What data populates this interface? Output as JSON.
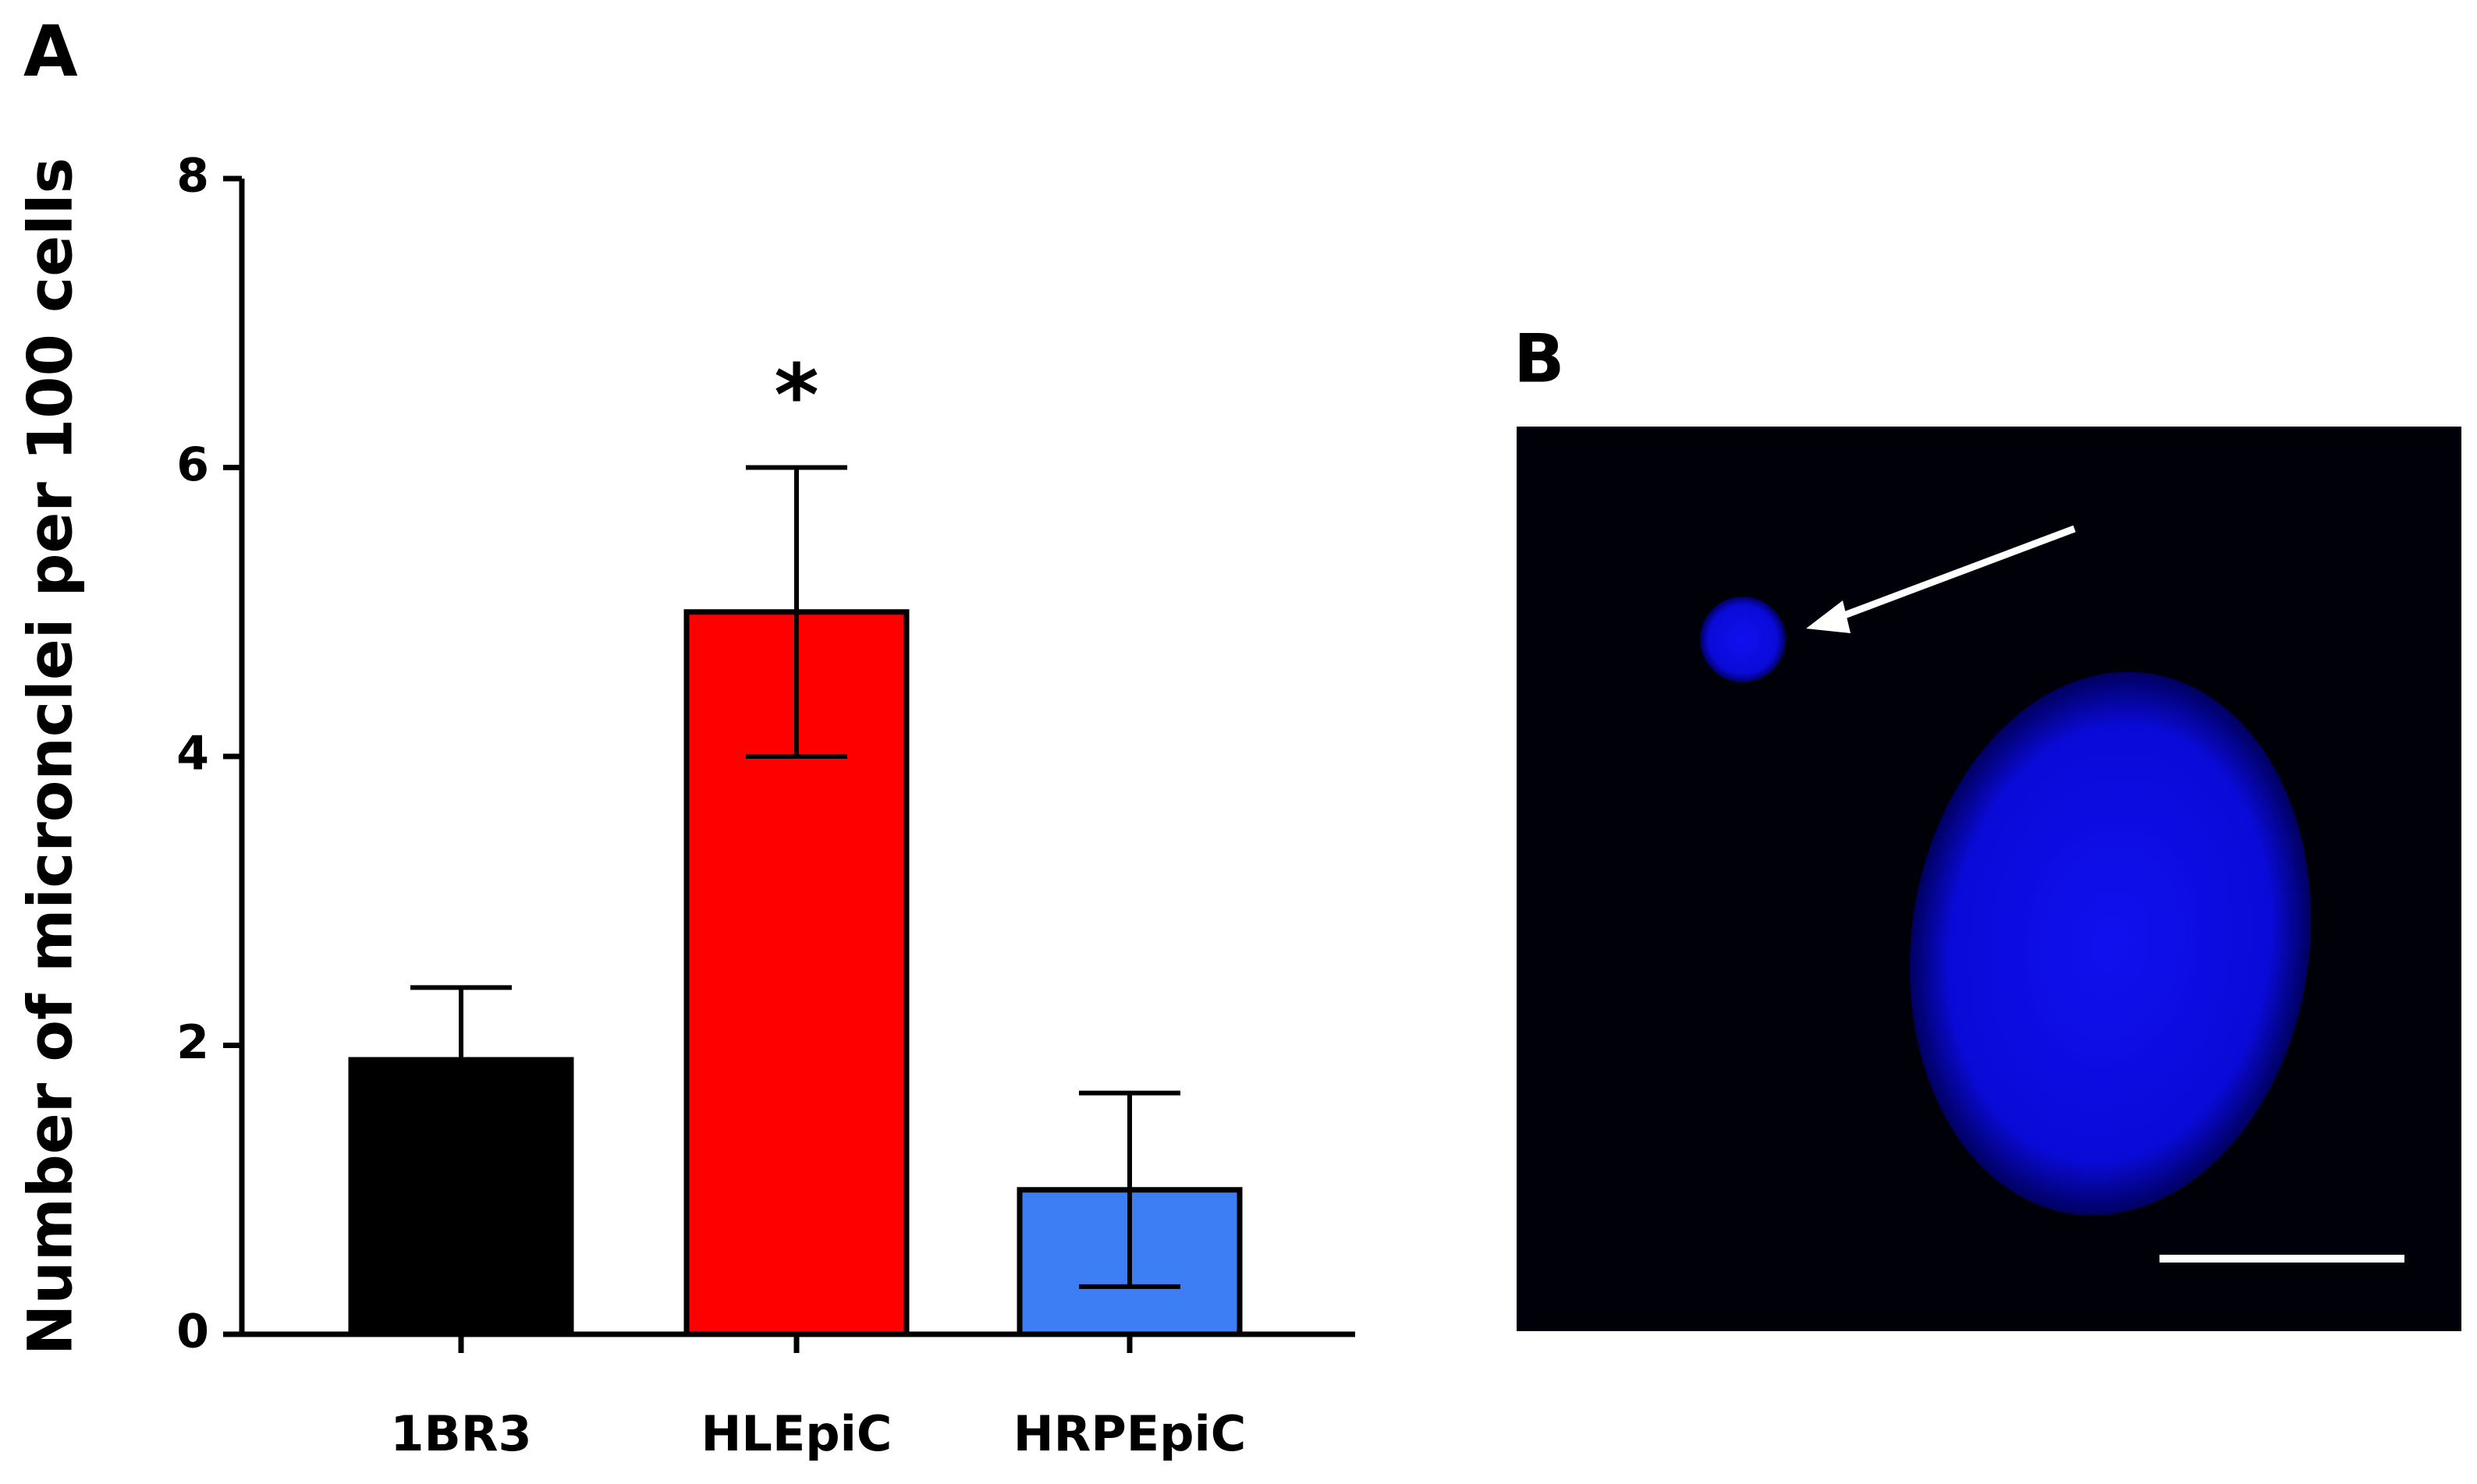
{
  "chart_data": {
    "type": "bar",
    "panel_label": "A",
    "y_label": "Number of micronclei per 100 cells",
    "categories": [
      "1BR3",
      "HLEpiC",
      "HRPEpiC"
    ],
    "values": [
      1.9,
      5.0,
      1.0
    ],
    "errors": [
      0.5,
      1.0,
      0.67
    ],
    "colors": [
      "#000000",
      "#ff0000",
      "#3d7ef5"
    ],
    "ylim": [
      0,
      8
    ],
    "yticks": [
      0,
      2,
      4,
      6,
      8
    ],
    "annotations": [
      {
        "text": "*",
        "category": "HLEpiC"
      }
    ]
  },
  "image_panel": {
    "label": "B"
  }
}
